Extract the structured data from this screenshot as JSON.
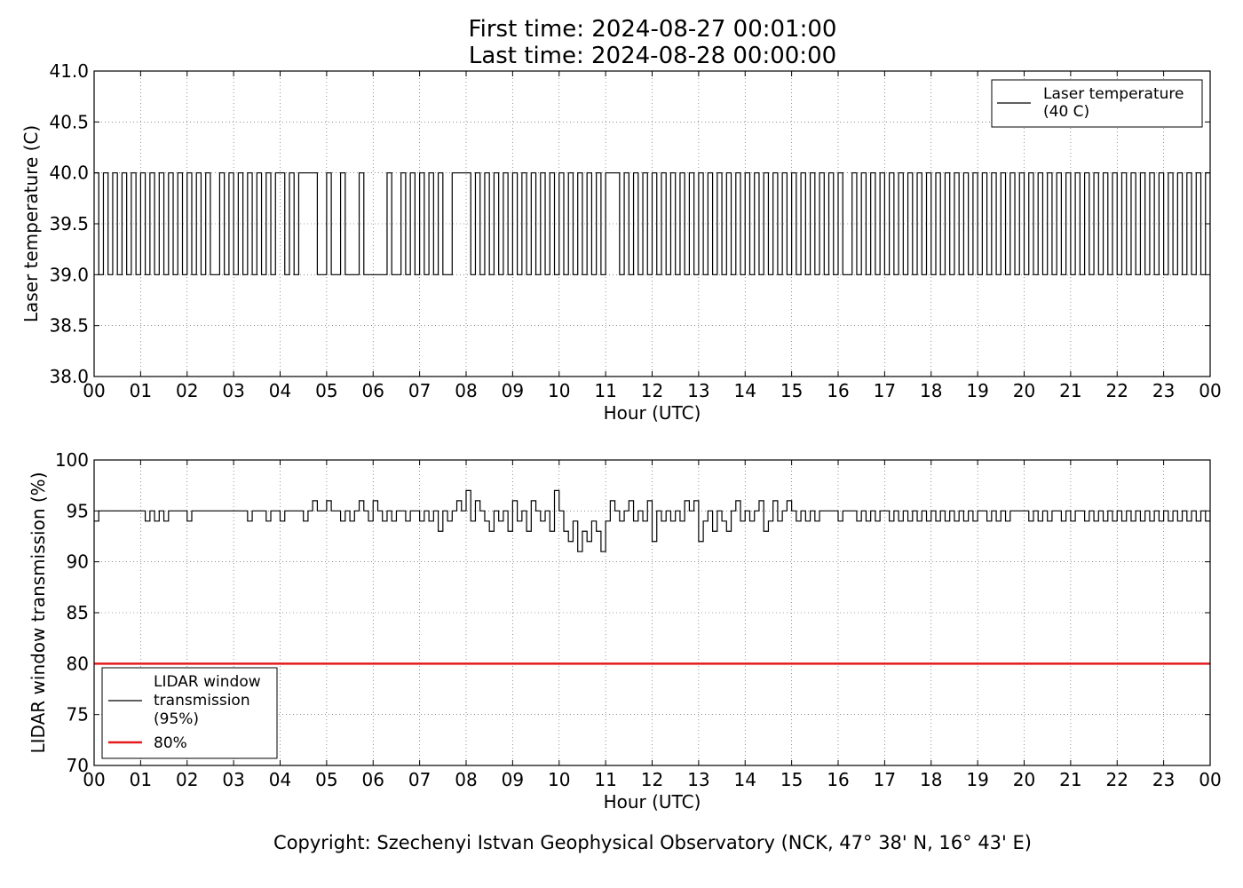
{
  "header": {
    "title_line1": "First time: 2024-08-27 00:01:00",
    "title_line2": "Last time: 2024-08-28 00:00:00"
  },
  "footer": {
    "copyright": "Copyright: Szechenyi Istvan Geophysical Observatory (NCK, 47° 38' N, 16° 43' E)"
  },
  "chart_data": [
    {
      "type": "line",
      "xlabel": "Hour (UTC)",
      "ylabel": "Laser temperature (C)",
      "xlim": [
        0,
        24
      ],
      "ylim": [
        38.0,
        41.0
      ],
      "x_ticks": [
        "00",
        "01",
        "02",
        "03",
        "04",
        "05",
        "06",
        "07",
        "08",
        "09",
        "10",
        "11",
        "12",
        "13",
        "14",
        "15",
        "16",
        "17",
        "18",
        "19",
        "20",
        "21",
        "22",
        "23",
        "00"
      ],
      "y_ticks": [
        "38.0",
        "38.5",
        "39.0",
        "39.5",
        "40.0",
        "40.5",
        "41.0"
      ],
      "grid": true,
      "legend_placement": "top-right",
      "series": [
        {
          "name": "Laser temperature (40 C)",
          "legend_lines": [
            "Laser temperature",
            "(40 C)"
          ],
          "color": "#000000",
          "x": [
            0,
            0.1,
            0.2,
            0.3,
            0.4,
            0.5,
            0.6,
            0.7,
            0.8,
            0.9,
            1.0,
            1.1,
            1.2,
            1.3,
            1.4,
            1.5,
            1.6,
            1.7,
            1.8,
            1.9,
            2.0,
            2.1,
            2.2,
            2.3,
            2.4,
            2.5,
            2.6,
            2.7,
            2.8,
            2.9,
            3.0,
            3.1,
            3.2,
            3.3,
            3.4,
            3.5,
            3.6,
            3.7,
            3.8,
            3.9,
            4.0,
            4.1,
            4.2,
            4.3,
            4.4,
            4.5,
            4.6,
            4.7,
            4.8,
            4.9,
            5.0,
            5.1,
            5.2,
            5.3,
            5.4,
            5.5,
            5.6,
            5.7,
            5.8,
            5.9,
            6.0,
            6.1,
            6.2,
            6.3,
            6.4,
            6.5,
            6.6,
            6.7,
            6.8,
            6.9,
            7.0,
            7.1,
            7.2,
            7.3,
            7.4,
            7.5,
            7.6,
            7.7,
            7.8,
            7.9,
            8.0,
            8.1,
            8.2,
            8.3,
            8.4,
            8.5,
            8.6,
            8.7,
            8.8,
            8.9,
            9.0,
            9.1,
            9.2,
            9.3,
            9.4,
            9.5,
            9.6,
            9.7,
            9.8,
            9.9,
            10.0,
            10.1,
            10.2,
            10.3,
            10.4,
            10.5,
            10.6,
            10.7,
            10.8,
            10.9,
            11.0,
            11.1,
            11.2,
            11.3,
            11.4,
            11.5,
            11.6,
            11.7,
            11.8,
            11.9,
            12.0,
            12.1,
            12.2,
            12.3,
            12.4,
            12.5,
            12.6,
            12.7,
            12.8,
            12.9,
            13.0,
            13.1,
            13.2,
            13.3,
            13.4,
            13.5,
            13.6,
            13.7,
            13.8,
            13.9,
            14.0,
            14.1,
            14.2,
            14.3,
            14.4,
            14.5,
            14.6,
            14.7,
            14.8,
            14.9,
            15.0,
            15.1,
            15.2,
            15.3,
            15.4,
            15.5,
            15.6,
            15.7,
            15.8,
            15.9,
            16.0,
            16.1,
            16.2,
            16.3,
            16.4,
            16.5,
            16.6,
            16.7,
            16.8,
            16.9,
            17.0,
            17.1,
            17.2,
            17.3,
            17.4,
            17.5,
            17.6,
            17.7,
            17.8,
            17.9,
            18.0,
            18.1,
            18.2,
            18.3,
            18.4,
            18.5,
            18.6,
            18.7,
            18.8,
            18.9,
            19.0,
            19.1,
            19.2,
            19.3,
            19.4,
            19.5,
            19.6,
            19.7,
            19.8,
            19.9,
            20.0,
            20.1,
            20.2,
            20.3,
            20.4,
            20.5,
            20.6,
            20.7,
            20.8,
            20.9,
            21.0,
            21.1,
            21.2,
            21.3,
            21.4,
            21.5,
            21.6,
            21.7,
            21.8,
            21.9,
            22.0,
            22.1,
            22.2,
            22.3,
            22.4,
            22.5,
            22.6,
            22.7,
            22.8,
            22.9,
            23.0,
            23.1,
            23.2,
            23.3,
            23.4,
            23.5,
            23.6,
            23.7,
            23.8,
            23.9,
            24.0
          ],
          "y": [
            40,
            39,
            40,
            39,
            40,
            39,
            40,
            39,
            40,
            39,
            40,
            39,
            40,
            39,
            40,
            39,
            40,
            39,
            40,
            39,
            40,
            39,
            40,
            39,
            40,
            39,
            39,
            40,
            39,
            40,
            39,
            40,
            39,
            40,
            39,
            40,
            39,
            40,
            39,
            40,
            40,
            39,
            40,
            39,
            40,
            40,
            40,
            40,
            39,
            39,
            40,
            39,
            39,
            40,
            39,
            39,
            39,
            40,
            39,
            39,
            39,
            39,
            39,
            40,
            39,
            39,
            40,
            39,
            40,
            39,
            40,
            39,
            40,
            39,
            40,
            39,
            39,
            40,
            40,
            40,
            40,
            39,
            40,
            39,
            40,
            39,
            40,
            39,
            40,
            39,
            40,
            39,
            40,
            39,
            40,
            39,
            40,
            39,
            40,
            39,
            40,
            39,
            40,
            39,
            40,
            39,
            40,
            39,
            40,
            39,
            40,
            40,
            40,
            39,
            40,
            39,
            40,
            39,
            40,
            39,
            40,
            39,
            40,
            39,
            40,
            39,
            40,
            39,
            40,
            39,
            40,
            39,
            40,
            39,
            40,
            39,
            40,
            39,
            40,
            39,
            40,
            39,
            40,
            39,
            40,
            39,
            40,
            39,
            40,
            39,
            40,
            39,
            40,
            39,
            40,
            39,
            40,
            39,
            40,
            39,
            40,
            39,
            39,
            40,
            39,
            40,
            39,
            40,
            39,
            40,
            39,
            40,
            39,
            40,
            39,
            40,
            39,
            40,
            39,
            40,
            39,
            40,
            39,
            40,
            39,
            40,
            39,
            40,
            39,
            40,
            39,
            40,
            39,
            40,
            39,
            40,
            39,
            40,
            39,
            40,
            39,
            40,
            39,
            40,
            39,
            40,
            39,
            40,
            39,
            40,
            39,
            40,
            39,
            40,
            39,
            40,
            39,
            40,
            39,
            40,
            39,
            40,
            39,
            40,
            39,
            40,
            39,
            40,
            39,
            40,
            39,
            40,
            39,
            40,
            39,
            40,
            39,
            40,
            39,
            40,
            39
          ]
        }
      ]
    },
    {
      "type": "line",
      "xlabel": "Hour (UTC)",
      "ylabel": "LIDAR window transmission (%)",
      "xlim": [
        0,
        24
      ],
      "ylim": [
        70,
        100
      ],
      "x_ticks": [
        "00",
        "01",
        "02",
        "03",
        "04",
        "05",
        "06",
        "07",
        "08",
        "09",
        "10",
        "11",
        "12",
        "13",
        "14",
        "15",
        "16",
        "17",
        "18",
        "19",
        "20",
        "21",
        "22",
        "23",
        "00"
      ],
      "y_ticks": [
        "70",
        "75",
        "80",
        "85",
        "90",
        "95",
        "100"
      ],
      "grid": true,
      "legend_placement": "bottom-left",
      "series": [
        {
          "name": "LIDAR window transmission (95%)",
          "legend_lines": [
            "LIDAR window",
            "transmission",
            "(95%)"
          ],
          "color": "#000000",
          "x": [
            0,
            0.1,
            0.2,
            0.3,
            0.4,
            0.5,
            0.6,
            0.7,
            0.8,
            0.9,
            1.0,
            1.1,
            1.2,
            1.3,
            1.4,
            1.5,
            1.6,
            1.7,
            1.8,
            1.9,
            2.0,
            2.1,
            2.2,
            2.3,
            2.4,
            2.5,
            2.6,
            2.7,
            2.8,
            2.9,
            3.0,
            3.1,
            3.2,
            3.3,
            3.4,
            3.5,
            3.6,
            3.7,
            3.8,
            3.9,
            4.0,
            4.1,
            4.2,
            4.3,
            4.4,
            4.5,
            4.6,
            4.7,
            4.8,
            4.9,
            5.0,
            5.1,
            5.2,
            5.3,
            5.4,
            5.5,
            5.6,
            5.7,
            5.8,
            5.9,
            6.0,
            6.1,
            6.2,
            6.3,
            6.4,
            6.5,
            6.6,
            6.7,
            6.8,
            6.9,
            7.0,
            7.1,
            7.2,
            7.3,
            7.4,
            7.5,
            7.6,
            7.7,
            7.8,
            7.9,
            8.0,
            8.1,
            8.2,
            8.3,
            8.4,
            8.5,
            8.6,
            8.7,
            8.8,
            8.9,
            9.0,
            9.1,
            9.2,
            9.3,
            9.4,
            9.5,
            9.6,
            9.7,
            9.8,
            9.9,
            10.0,
            10.1,
            10.2,
            10.3,
            10.4,
            10.5,
            10.6,
            10.7,
            10.8,
            10.9,
            11.0,
            11.1,
            11.2,
            11.3,
            11.4,
            11.5,
            11.6,
            11.7,
            11.8,
            11.9,
            12.0,
            12.1,
            12.2,
            12.3,
            12.4,
            12.5,
            12.6,
            12.7,
            12.8,
            12.9,
            13.0,
            13.1,
            13.2,
            13.3,
            13.4,
            13.5,
            13.6,
            13.7,
            13.8,
            13.9,
            14.0,
            14.1,
            14.2,
            14.3,
            14.4,
            14.5,
            14.6,
            14.7,
            14.8,
            14.9,
            15.0,
            15.1,
            15.2,
            15.3,
            15.4,
            15.5,
            15.6,
            15.7,
            15.8,
            15.9,
            16.0,
            16.1,
            16.2,
            16.3,
            16.4,
            16.5,
            16.6,
            16.7,
            16.8,
            16.9,
            17.0,
            17.1,
            17.2,
            17.3,
            17.4,
            17.5,
            17.6,
            17.7,
            17.8,
            17.9,
            18.0,
            18.1,
            18.2,
            18.3,
            18.4,
            18.5,
            18.6,
            18.7,
            18.8,
            18.9,
            19.0,
            19.1,
            19.2,
            19.3,
            19.4,
            19.5,
            19.6,
            19.7,
            19.8,
            19.9,
            20.0,
            20.1,
            20.2,
            20.3,
            20.4,
            20.5,
            20.6,
            20.7,
            20.8,
            20.9,
            21.0,
            21.1,
            21.2,
            21.3,
            21.4,
            21.5,
            21.6,
            21.7,
            21.8,
            21.9,
            22.0,
            22.1,
            22.2,
            22.3,
            22.4,
            22.5,
            22.6,
            22.7,
            22.8,
            22.9,
            23.0,
            23.1,
            23.2,
            23.3,
            23.4,
            23.5,
            23.6,
            23.7,
            23.8,
            23.9,
            24.0
          ],
          "y": [
            94,
            95,
            95,
            95,
            95,
            95,
            95,
            95,
            95,
            95,
            95,
            94,
            95,
            94,
            95,
            94,
            95,
            95,
            95,
            95,
            94,
            95,
            95,
            95,
            95,
            95,
            95,
            95,
            95,
            95,
            95,
            95,
            95,
            94,
            95,
            95,
            95,
            94,
            95,
            95,
            94,
            95,
            95,
            95,
            95,
            94,
            95,
            96,
            95,
            95,
            96,
            95,
            95,
            94,
            95,
            94,
            95,
            96,
            95,
            94,
            96,
            95,
            94,
            95,
            94,
            95,
            95,
            94,
            95,
            95,
            94,
            95,
            94,
            95,
            93,
            95,
            94,
            95,
            96,
            95,
            97,
            94,
            96,
            95,
            94,
            93,
            95,
            94,
            95,
            93,
            96,
            94,
            95,
            93,
            96,
            95,
            94,
            95,
            93,
            97,
            95,
            93,
            92,
            94,
            91,
            93,
            92,
            94,
            93,
            91,
            94,
            96,
            95,
            94,
            95,
            96,
            94,
            95,
            94,
            96,
            92,
            95,
            94,
            95,
            94,
            95,
            94,
            96,
            95,
            96,
            92,
            94,
            95,
            93,
            95,
            94,
            93,
            95,
            96,
            94,
            95,
            94,
            95,
            96,
            93,
            94,
            96,
            94,
            95,
            96,
            95,
            94,
            95,
            94,
            95,
            94,
            95,
            95,
            95,
            95,
            94,
            95,
            95,
            95,
            94,
            95,
            94,
            95,
            94,
            95,
            95,
            94,
            95,
            94,
            95,
            94,
            95,
            94,
            95,
            94,
            95,
            94,
            95,
            94,
            95,
            94,
            95,
            94,
            95,
            94,
            95,
            95,
            94,
            95,
            94,
            95,
            94,
            95,
            95,
            95,
            95,
            94,
            95,
            94,
            95,
            94,
            95,
            95,
            94,
            95,
            94,
            95,
            95,
            94,
            95,
            94,
            95,
            94,
            95,
            94,
            95,
            94,
            95,
            94,
            95,
            94,
            95,
            94,
            95,
            94,
            95,
            94,
            95,
            94,
            95,
            94,
            95,
            94,
            95,
            94,
            95
          ]
        },
        {
          "name": "80%",
          "legend_lines": [
            "80%"
          ],
          "color": "#e41a1c",
          "x": [
            0,
            24
          ],
          "y": [
            80,
            80
          ]
        }
      ]
    }
  ]
}
